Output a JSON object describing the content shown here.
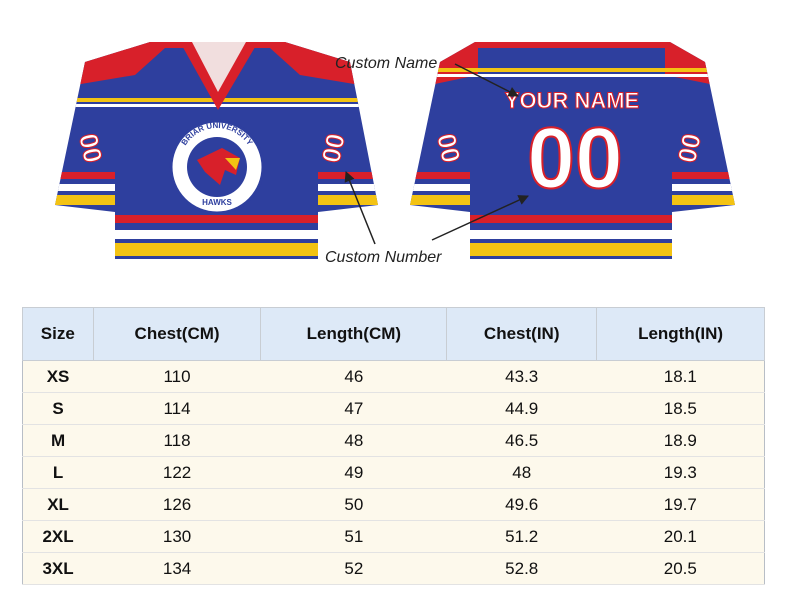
{
  "annotations": {
    "custom_name": "Custom Name",
    "custom_number": "Custom Number"
  },
  "jersey": {
    "school": "BRIAR UNIVERSITY",
    "mascot": "HAWKS",
    "name": "YOUR NAME",
    "number": "00"
  },
  "table": {
    "header": [
      "Size",
      "Chest(CM)",
      "Length(CM)",
      "Chest(IN)",
      "Length(IN)"
    ],
    "rows": [
      [
        "XS",
        110,
        46,
        43.3,
        18.1
      ],
      [
        "S",
        114,
        47,
        44.9,
        18.5
      ],
      [
        "M",
        118,
        48,
        46.5,
        18.9
      ],
      [
        "L",
        122,
        49,
        48,
        19.3
      ],
      [
        "XL",
        126,
        50,
        49.6,
        19.7
      ],
      [
        "2XL",
        130,
        51,
        51.2,
        20.1
      ],
      [
        "3XL",
        134,
        52,
        52.8,
        20.5
      ]
    ]
  }
}
